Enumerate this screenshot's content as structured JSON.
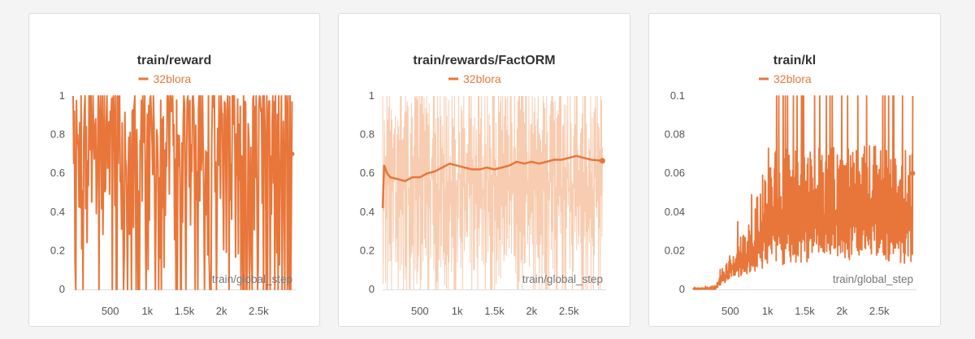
{
  "colors": {
    "series": "#e8763a",
    "band": "#f3b68f",
    "axis": "#dddddd"
  },
  "chart_data": [
    {
      "type": "line",
      "title": "train/reward",
      "legend": [
        "32blora"
      ],
      "legend_position": "top-center",
      "xlabel": "train/global_step",
      "xlim": [
        0,
        3000
      ],
      "ylim": [
        0,
        1
      ],
      "x_ticks": [
        500,
        1000,
        1500,
        2000,
        2500
      ],
      "x_tick_labels": [
        "500",
        "1k",
        "1.5k",
        "2k",
        "2.5k"
      ],
      "y_ticks": [
        0,
        0.2,
        0.4,
        0.6,
        0.8,
        1
      ],
      "y_tick_labels": [
        "0",
        "0.2",
        "0.4",
        "0.6",
        "0.8",
        "1"
      ],
      "grid": false,
      "series": [
        {
          "name": "32blora",
          "style": "raw",
          "mean": 0.62,
          "min": 0,
          "max": 1,
          "last": 0.7
        }
      ]
    },
    {
      "type": "line",
      "title": "train/rewards/FactORM",
      "legend": [
        "32blora"
      ],
      "legend_position": "top-center",
      "xlabel": "train/global_step",
      "xlim": [
        0,
        3000
      ],
      "ylim": [
        0,
        1
      ],
      "x_ticks": [
        500,
        1000,
        1500,
        2000,
        2500
      ],
      "x_tick_labels": [
        "500",
        "1k",
        "1.5k",
        "2k",
        "2.5k"
      ],
      "y_ticks": [
        0,
        0.2,
        0.4,
        0.6,
        0.8,
        1
      ],
      "y_tick_labels": [
        "0",
        "0.2",
        "0.4",
        "0.6",
        "0.8",
        "1"
      ],
      "grid": false,
      "series": [
        {
          "name": "32blora",
          "style": "smoothed",
          "x": [
            0,
            20,
            60,
            100,
            200,
            300,
            400,
            500,
            600,
            700,
            800,
            900,
            1000,
            1100,
            1200,
            1300,
            1400,
            1500,
            1600,
            1700,
            1800,
            1900,
            2000,
            2100,
            2200,
            2300,
            2400,
            2500,
            2600,
            2700,
            2800,
            2950
          ],
          "y": [
            0.42,
            0.64,
            0.6,
            0.58,
            0.57,
            0.56,
            0.58,
            0.58,
            0.6,
            0.61,
            0.63,
            0.65,
            0.64,
            0.63,
            0.62,
            0.62,
            0.63,
            0.62,
            0.63,
            0.64,
            0.66,
            0.65,
            0.66,
            0.65,
            0.66,
            0.67,
            0.67,
            0.68,
            0.69,
            0.68,
            0.67,
            0.665
          ],
          "raw_range": [
            0,
            1
          ]
        }
      ]
    },
    {
      "type": "line",
      "title": "train/kl",
      "legend": [
        "32blora"
      ],
      "legend_position": "top-center",
      "xlabel": "train/global_step",
      "xlim": [
        0,
        3000
      ],
      "ylim": [
        0,
        0.1
      ],
      "x_ticks": [
        500,
        1000,
        1500,
        2000,
        2500
      ],
      "x_tick_labels": [
        "500",
        "1k",
        "1.5k",
        "2k",
        "2.5k"
      ],
      "y_ticks": [
        0,
        0.02,
        0.04,
        0.06,
        0.08,
        0.1
      ],
      "y_tick_labels": [
        "0",
        "0.02",
        "0.04",
        "0.06",
        "0.08",
        "0.1"
      ],
      "grid": false,
      "series": [
        {
          "name": "32blora",
          "style": "raw",
          "envelope_x": [
            0,
            300,
            400,
            600,
            800,
            1000,
            1200,
            1500,
            2000,
            2500,
            2950
          ],
          "envelope_lo": [
            0,
            0,
            0.003,
            0.006,
            0.008,
            0.01,
            0.012,
            0.014,
            0.015,
            0.014,
            0.013
          ],
          "envelope_hi": [
            0.001,
            0.002,
            0.015,
            0.035,
            0.05,
            0.1,
            0.1,
            0.1,
            0.1,
            0.1,
            0.1
          ],
          "last": 0.06
        }
      ]
    }
  ]
}
